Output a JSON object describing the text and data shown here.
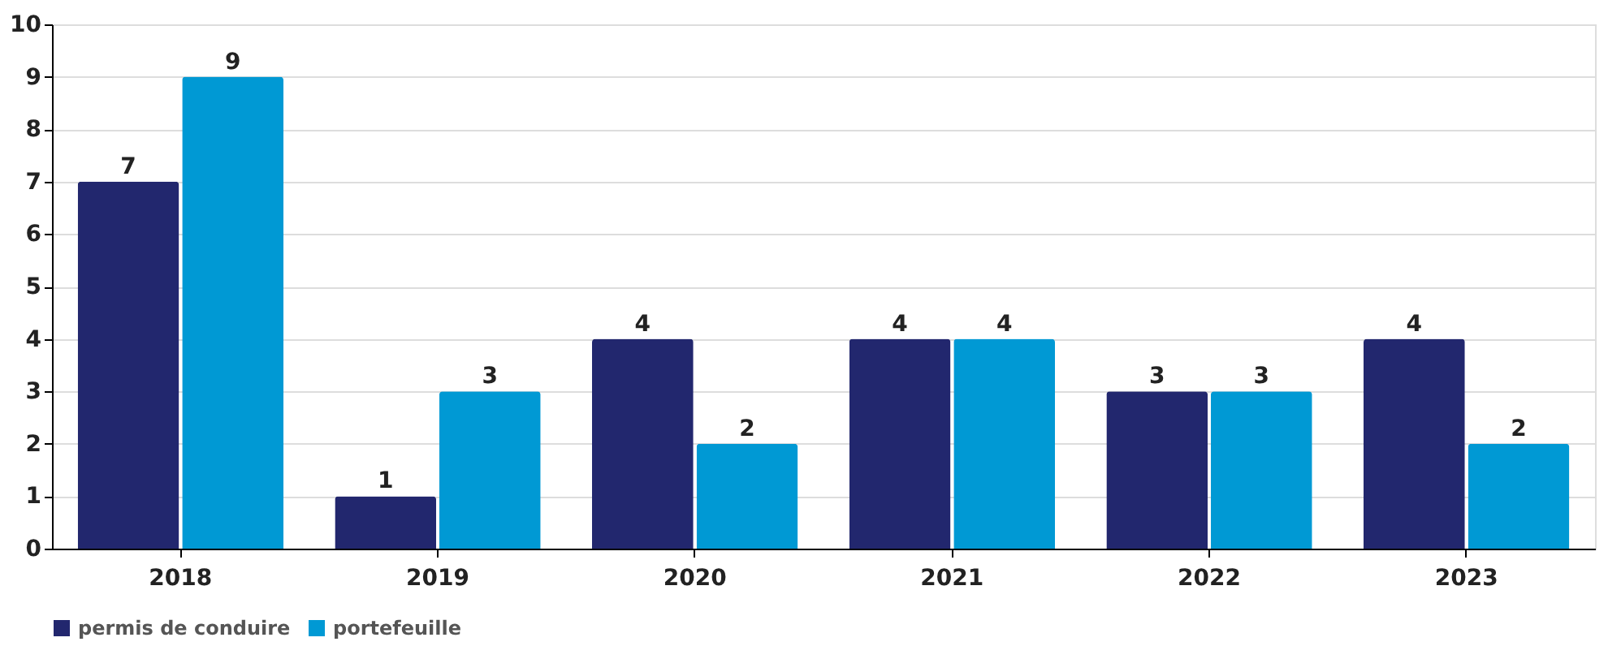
{
  "chart_data": {
    "type": "bar",
    "categories": [
      "2018",
      "2019",
      "2020",
      "2021",
      "2022",
      "2023"
    ],
    "series": [
      {
        "name": "permis de conduire",
        "color": "#22276e",
        "values": [
          7,
          1,
          4,
          4,
          3,
          4
        ]
      },
      {
        "name": "portefeuille",
        "color": "#0099d4",
        "values": [
          9,
          3,
          2,
          4,
          3,
          2
        ]
      }
    ],
    "ylim": [
      0,
      10
    ],
    "yticks": [
      0,
      1,
      2,
      3,
      4,
      5,
      6,
      7,
      8,
      9,
      10
    ],
    "grid": "y",
    "legend": "bottom",
    "data_labels": true
  }
}
